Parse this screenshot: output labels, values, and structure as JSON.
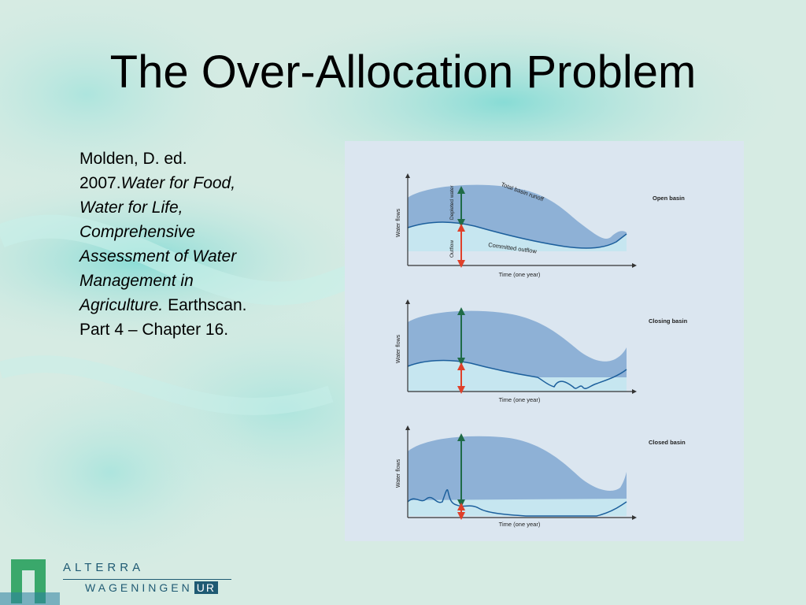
{
  "slide": {
    "title": "The Over-Allocation Problem"
  },
  "citation": {
    "lead": "Molden, D. ed. 2007.",
    "book_title": "Water for Food, Water for Life, Comprehensive Assessment of Water Management in Agriculture",
    "period": ".",
    "tail": " Earthscan. Part 4 – Chapter 16."
  },
  "figure": {
    "panels": [
      {
        "name": "Open basin",
        "y_label": "Water flows",
        "x_label": "Time (one year)",
        "labels": {
          "total_runoff": "Total basin runoff",
          "depleted": "Depleted water",
          "outflow": "Outflow",
          "committed": "Committed outflow"
        }
      },
      {
        "name": "Closing basin",
        "y_label": "Water flows",
        "x_label": "Time (one year)"
      },
      {
        "name": "Closed basin",
        "y_label": "Water flows",
        "x_label": "Time (one year)"
      }
    ],
    "colors": {
      "runoff_area": "#8eb1d6",
      "committed_area": "#c6e6f0",
      "outflow_line": "#1c5f9c",
      "depleted_arrow": "#1f6b47",
      "outflow_arrow": "#e0402a"
    }
  },
  "logo": {
    "top": "ALTERRA",
    "bottom": "WAGENINGEN",
    "badge": "UR",
    "colors": {
      "brand": "#1f5a73",
      "mark": "#3aa86b"
    }
  }
}
